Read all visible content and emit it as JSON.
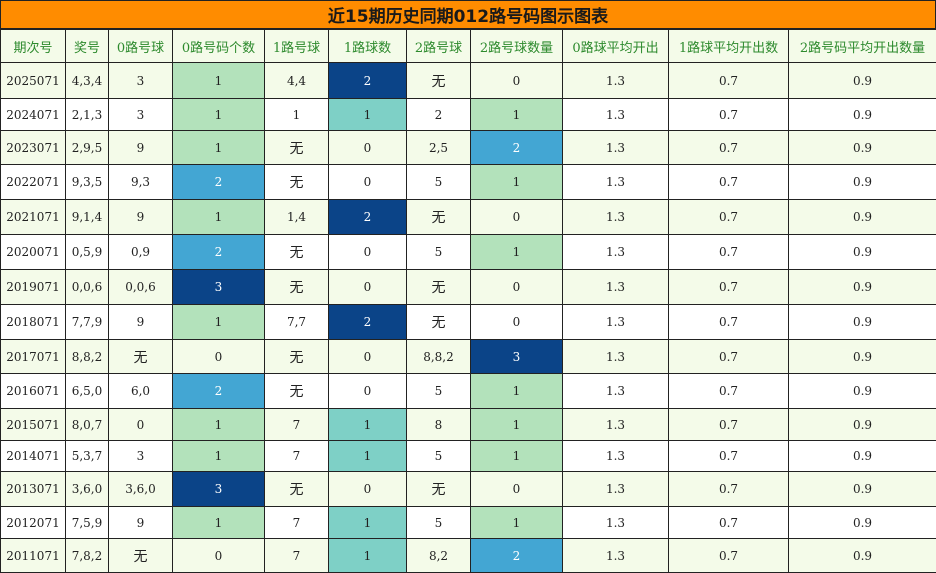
{
  "title": "近15期历史同期012路号码图示图表",
  "headers": [
    "期次号",
    "奖号",
    "0路号球",
    "0路号码个数",
    "1路号球",
    "1路球数",
    "2路号球",
    "2路号球数量",
    "0路球平均开出",
    "1路球平均开出数",
    "2路号码平均开出数量"
  ],
  "rows": [
    [
      "2025071",
      "4,3,4",
      "3",
      "1",
      "4,4",
      "2",
      "无",
      "0",
      "1.3",
      "0.7",
      "0.9"
    ],
    [
      "2024071",
      "2,1,3",
      "3",
      "1",
      "1",
      "1",
      "2",
      "1",
      "1.3",
      "0.7",
      "0.9"
    ],
    [
      "2023071",
      "2,9,5",
      "9",
      "1",
      "无",
      "0",
      "2,5",
      "2",
      "1.3",
      "0.7",
      "0.9"
    ],
    [
      "2022071",
      "9,3,5",
      "9,3",
      "2",
      "无",
      "0",
      "5",
      "1",
      "1.3",
      "0.7",
      "0.9"
    ],
    [
      "2021071",
      "9,1,4",
      "9",
      "1",
      "1,4",
      "2",
      "无",
      "0",
      "1.3",
      "0.7",
      "0.9"
    ],
    [
      "2020071",
      "0,5,9",
      "0,9",
      "2",
      "无",
      "0",
      "5",
      "1",
      "1.3",
      "0.7",
      "0.9"
    ],
    [
      "2019071",
      "0,0,6",
      "0,0,6",
      "3",
      "无",
      "0",
      "无",
      "0",
      "1.3",
      "0.7",
      "0.9"
    ],
    [
      "2018071",
      "7,7,9",
      "9",
      "1",
      "7,7",
      "2",
      "无",
      "0",
      "1.3",
      "0.7",
      "0.9"
    ],
    [
      "2017071",
      "8,8,2",
      "无",
      "0",
      "无",
      "0",
      "8,8,2",
      "3",
      "1.3",
      "0.7",
      "0.9"
    ],
    [
      "2016071",
      "6,5,0",
      "6,0",
      "2",
      "无",
      "0",
      "5",
      "1",
      "1.3",
      "0.7",
      "0.9"
    ],
    [
      "2015071",
      "8,0,7",
      "0",
      "1",
      "7",
      "1",
      "8",
      "1",
      "1.3",
      "0.7",
      "0.9"
    ],
    [
      "2014071",
      "5,3,7",
      "3",
      "1",
      "7",
      "1",
      "5",
      "1",
      "1.3",
      "0.7",
      "0.9"
    ],
    [
      "2013071",
      "3,6,0",
      "3,6,0",
      "3",
      "无",
      "0",
      "无",
      "0",
      "1.3",
      "0.7",
      "0.9"
    ],
    [
      "2012071",
      "7,5,9",
      "9",
      "1",
      "7",
      "1",
      "5",
      "1",
      "1.3",
      "0.7",
      "0.9"
    ],
    [
      "2011071",
      "7,8,2",
      "无",
      "0",
      "7",
      "1",
      "8,2",
      "2",
      "1.3",
      "0.7",
      "0.9"
    ]
  ],
  "colors": {
    "title_bg": "#ff8c00",
    "header_text": "#2d8a2d",
    "count_1": "#b3e2bb",
    "count_2": "#43a6d3",
    "count_3": "#0b4488",
    "one_route_count_1": "#7ed0c6"
  }
}
